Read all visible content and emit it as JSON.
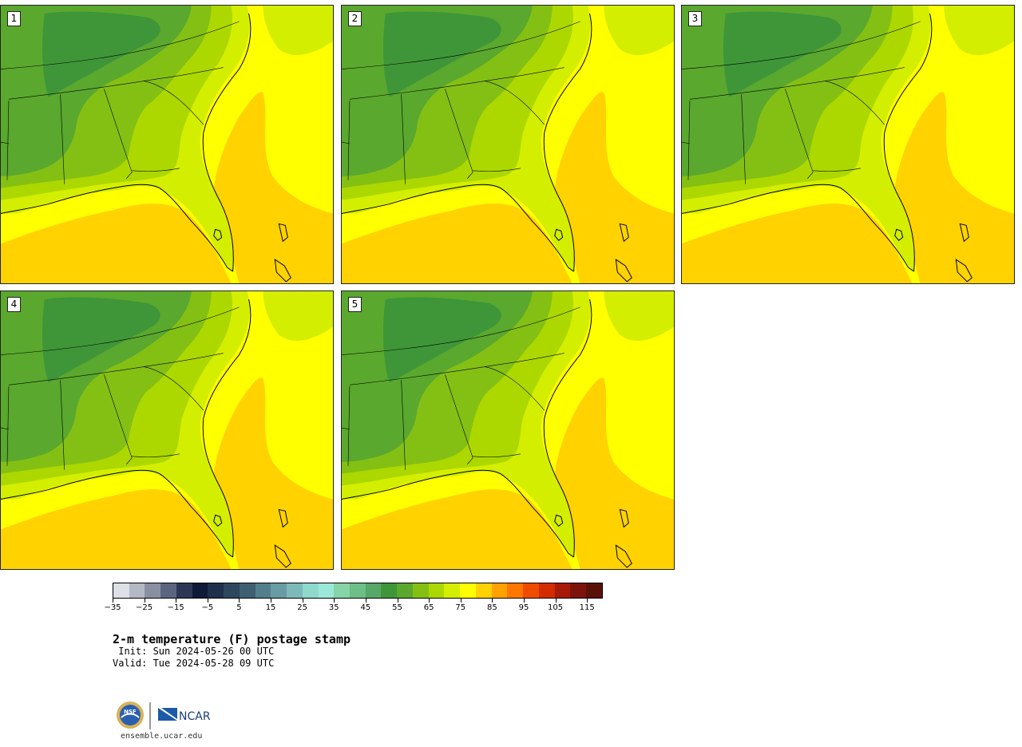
{
  "panels": [
    {
      "label": "1"
    },
    {
      "label": "2"
    },
    {
      "label": "3"
    },
    {
      "label": "4"
    },
    {
      "label": "5"
    }
  ],
  "colorbar": {
    "colors": [
      "#dde0e6",
      "#b4b8c4",
      "#8a90a2",
      "#5c6580",
      "#2d3655",
      "#0e1a38",
      "#1e304c",
      "#2d475e",
      "#3e5f72",
      "#537f8c",
      "#679ca3",
      "#7cb9b8",
      "#8ed8cc",
      "#9ce8d8",
      "#86d4a8",
      "#6ebe88",
      "#57a868",
      "#3f9638",
      "#5aa82e",
      "#84c014",
      "#acd800",
      "#d4ee00",
      "#ffff00",
      "#ffd200",
      "#ffa200",
      "#ff7600",
      "#f04c00",
      "#d22c00",
      "#a81a08",
      "#7c140c",
      "#5a1208"
    ],
    "tick_labels": [
      "−35",
      "−25",
      "−15",
      "−5",
      "5",
      "15",
      "25",
      "35",
      "45",
      "55",
      "65",
      "75",
      "85",
      "95",
      "105",
      "115"
    ]
  },
  "title": "2-m temperature (F) postage stamp",
  "init": " Init: Sun 2024-05-26 00 UTC",
  "valid": "Valid: Tue 2024-05-28 09 UTC",
  "logos": {
    "nsf_text": "NSF",
    "ncar_text": "NCAR"
  },
  "site": "ensemble.ucar.edu"
}
